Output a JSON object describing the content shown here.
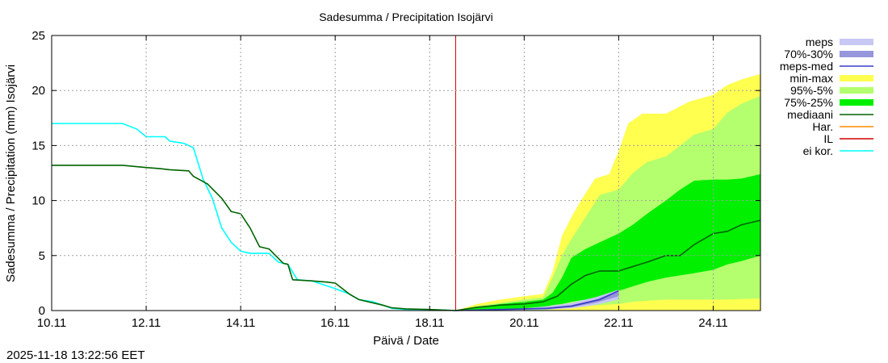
{
  "chart_data": {
    "type": "area",
    "title": "Sadesumma / Precipitation  Isojärvi",
    "xlabel": "Päivä / Date",
    "ylabel": "Sadesumma / Precipitation (mm)  Isojärvi",
    "timestamp": "2025-11-18 13:22:56 EET",
    "xlim": [
      0,
      15
    ],
    "ylim": [
      0,
      25
    ],
    "grid": true,
    "legend_position": "right",
    "x_ticks": [
      {
        "x": 0,
        "label": "10.11"
      },
      {
        "x": 2,
        "label": "12.11"
      },
      {
        "x": 4,
        "label": "14.11"
      },
      {
        "x": 6,
        "label": "16.11"
      },
      {
        "x": 8,
        "label": "18.11"
      },
      {
        "x": 10,
        "label": "20.11"
      },
      {
        "x": 12,
        "label": "22.11"
      },
      {
        "x": 14,
        "label": "24.11"
      }
    ],
    "y_ticks": [
      0,
      5,
      10,
      15,
      20,
      25
    ],
    "forecast_start_x": 8.55,
    "colors": {
      "meps": "#c8c8f5",
      "p70_30": "#9696dc",
      "meps_med": "#3c3cc8",
      "minmax": "#ffff50",
      "p95_5": "#b4ff6e",
      "p75_25": "#00f000",
      "median": "#006400",
      "har": "#ff8c00",
      "il": "#d00000",
      "eikor": "#00ffff"
    },
    "legend": [
      {
        "key": "meps",
        "label": "meps",
        "kind": "band"
      },
      {
        "key": "p70_30",
        "label": "70%-30%",
        "kind": "band"
      },
      {
        "key": "meps_med",
        "label": "meps-med",
        "kind": "line"
      },
      {
        "key": "minmax",
        "label": "min-max",
        "kind": "band"
      },
      {
        "key": "p95_5",
        "label": "95%-5%",
        "kind": "band"
      },
      {
        "key": "p75_25",
        "label": "75%-25%",
        "kind": "band"
      },
      {
        "key": "median",
        "label": "mediaani",
        "kind": "line"
      },
      {
        "key": "har",
        "label": "Har.",
        "kind": "line"
      },
      {
        "key": "il",
        "label": "IL",
        "kind": "line"
      },
      {
        "key": "eikor",
        "label": "ei kor.",
        "kind": "line"
      }
    ],
    "series": [
      {
        "key": "minmax",
        "kind": "band",
        "x": [
          8.55,
          9.0,
          9.5,
          10.0,
          10.4,
          10.6,
          10.8,
          11.0,
          11.2,
          11.5,
          11.8,
          12.0,
          12.2,
          12.5,
          13.0,
          13.5,
          14.0,
          14.3,
          14.6,
          15.0
        ],
        "lo": [
          0,
          0.05,
          0.05,
          0.05,
          0.05,
          0.05,
          0.05,
          0.05,
          0.05,
          0.05,
          0.05,
          0.05,
          0.05,
          0.05,
          0.05,
          0.05,
          0.05,
          0.05,
          0.05,
          0.05
        ],
        "hi": [
          0,
          0.6,
          1.0,
          1.3,
          1.5,
          3.5,
          6.8,
          8.5,
          10.0,
          12.0,
          12.4,
          14.5,
          17.0,
          17.9,
          17.9,
          19.0,
          19.6,
          20.5,
          21.0,
          21.5
        ]
      },
      {
        "key": "p95_5",
        "kind": "band",
        "x": [
          8.55,
          9.0,
          9.5,
          10.0,
          10.4,
          10.6,
          10.8,
          11.0,
          11.3,
          11.6,
          12.0,
          12.3,
          12.6,
          13.0,
          13.3,
          13.6,
          14.0,
          14.3,
          14.6,
          15.0
        ],
        "lo": [
          0,
          0.05,
          0.05,
          0.05,
          0.05,
          0.1,
          0.2,
          0.3,
          0.4,
          0.5,
          0.6,
          0.8,
          0.9,
          1.0,
          1.0,
          1.0,
          1.0,
          1.0,
          1.05,
          1.1
        ],
        "hi": [
          0,
          0.4,
          0.7,
          1.0,
          1.2,
          3.0,
          5.0,
          6.5,
          8.5,
          10.5,
          11.0,
          12.5,
          13.5,
          14.0,
          15.0,
          16.0,
          16.5,
          18.0,
          18.8,
          19.5
        ]
      },
      {
        "key": "p75_25",
        "kind": "band",
        "x": [
          8.55,
          9.0,
          9.5,
          10.0,
          10.4,
          10.6,
          10.8,
          11.0,
          11.3,
          11.6,
          12.0,
          12.3,
          12.6,
          13.0,
          13.3,
          13.6,
          14.0,
          14.3,
          14.6,
          15.0
        ],
        "lo": [
          0,
          0.05,
          0.1,
          0.2,
          0.3,
          0.5,
          0.6,
          0.8,
          1.0,
          1.3,
          1.8,
          2.2,
          2.6,
          3.0,
          3.2,
          3.4,
          3.7,
          4.2,
          4.5,
          5.0
        ],
        "hi": [
          0,
          0.3,
          0.6,
          0.8,
          1.0,
          1.6,
          3.0,
          4.8,
          5.6,
          6.2,
          7.0,
          7.8,
          8.8,
          10.0,
          11.0,
          11.8,
          11.9,
          11.9,
          12.0,
          12.4
        ]
      },
      {
        "key": "meps",
        "kind": "band",
        "x": [
          8.55,
          9.5,
          10.0,
          10.5,
          11.0,
          11.5,
          12.0
        ],
        "lo": [
          0,
          0.0,
          0.05,
          0.1,
          0.2,
          0.5,
          1.0
        ],
        "hi": [
          0,
          0.1,
          0.2,
          0.4,
          0.7,
          1.2,
          1.9
        ]
      },
      {
        "key": "p70_30",
        "kind": "band",
        "x": [
          8.55,
          9.5,
          10.0,
          10.5,
          11.0,
          11.5,
          12.0
        ],
        "lo": [
          0,
          0.05,
          0.1,
          0.15,
          0.3,
          0.7,
          1.3
        ],
        "hi": [
          0,
          0.1,
          0.15,
          0.3,
          0.5,
          1.0,
          1.8
        ]
      },
      {
        "key": "meps_med",
        "kind": "line",
        "x": [
          8.55,
          9.5,
          10.0,
          10.5,
          11.0,
          11.3,
          11.6,
          11.8,
          12.0
        ],
        "y": [
          0,
          0.1,
          0.15,
          0.2,
          0.4,
          0.7,
          1.0,
          1.4,
          1.8
        ]
      },
      {
        "key": "eikor",
        "kind": "line",
        "x": [
          0,
          1.5,
          1.8,
          2.0,
          2.4,
          2.5,
          2.8,
          3.0,
          3.2,
          3.4,
          3.6,
          3.8,
          4.0,
          4.2,
          4.6,
          4.8,
          5.0,
          5.2,
          5.5,
          6.0,
          6.3,
          6.5,
          6.8,
          7.0,
          7.2,
          7.5,
          8.0,
          8.55
        ],
        "y": [
          17.0,
          17.0,
          16.5,
          15.8,
          15.8,
          15.4,
          15.2,
          14.8,
          12.0,
          10.2,
          7.5,
          6.2,
          5.4,
          5.2,
          5.2,
          4.4,
          4.2,
          2.8,
          2.7,
          2.0,
          1.5,
          1.0,
          0.8,
          0.5,
          0.2,
          0.1,
          0.1,
          0.0
        ]
      },
      {
        "key": "median",
        "kind": "line",
        "x": [
          0,
          1.5,
          2.0,
          2.3,
          2.5,
          2.9,
          3.0,
          3.3,
          3.6,
          3.8,
          4.0,
          4.2,
          4.4,
          4.6,
          4.9,
          5.0,
          5.1,
          5.5,
          5.8,
          6.0,
          6.3,
          6.5,
          7.0,
          7.2,
          7.5,
          8.0,
          8.55,
          9.0,
          9.5,
          10.0,
          10.4,
          10.7,
          11.0,
          11.3,
          11.6,
          12.0,
          12.3,
          12.6,
          13.0,
          13.3,
          13.6,
          14.0,
          14.3,
          14.6,
          15.0
        ],
        "y": [
          13.2,
          13.2,
          13.0,
          12.9,
          12.8,
          12.7,
          12.2,
          11.5,
          10.2,
          9.0,
          8.8,
          7.5,
          5.8,
          5.6,
          4.3,
          4.2,
          2.8,
          2.7,
          2.6,
          2.5,
          1.5,
          1.0,
          0.5,
          0.25,
          0.15,
          0.1,
          0.0,
          0.3,
          0.5,
          0.6,
          0.8,
          1.3,
          2.4,
          3.2,
          3.6,
          3.6,
          4.0,
          4.4,
          5.0,
          5.0,
          6.0,
          7.0,
          7.2,
          7.8,
          8.2
        ]
      }
    ]
  }
}
